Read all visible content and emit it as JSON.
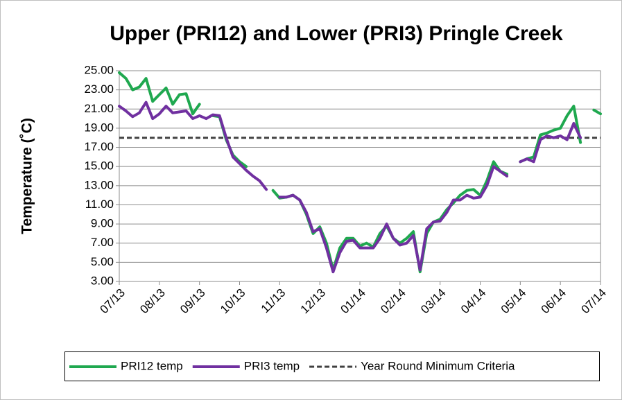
{
  "chart_data": {
    "type": "line",
    "title": "Upper (PRI12) and Lower (PRI3) Pringle Creek",
    "y_label": "Temperature (˚C)",
    "categories": [
      "07/13",
      null,
      null,
      null,
      null,
      null,
      "08/13",
      null,
      null,
      null,
      null,
      null,
      "09/13",
      null,
      null,
      null,
      null,
      null,
      "10/13",
      null,
      null,
      null,
      null,
      null,
      "11/13",
      null,
      null,
      null,
      null,
      null,
      "12/13",
      null,
      null,
      null,
      null,
      null,
      "01/14",
      null,
      null,
      null,
      null,
      null,
      "02/14",
      null,
      null,
      null,
      null,
      null,
      "03/14",
      null,
      null,
      null,
      null,
      null,
      "04/14",
      null,
      null,
      null,
      null,
      null,
      "05/14",
      null,
      null,
      null,
      null,
      null,
      "06/14",
      null,
      null,
      null,
      null,
      null,
      "07/14"
    ],
    "series": [
      {
        "name": "PRI12 temp",
        "color": "#1fa84f",
        "values": [
          24.8,
          24.2,
          23.0,
          23.3,
          24.2,
          21.8,
          22.5,
          23.2,
          21.5,
          22.5,
          22.6,
          20.5,
          21.5,
          null,
          20.3,
          20.2,
          17.8,
          16.2,
          15.5,
          15.0,
          null,
          null,
          null,
          12.5,
          11.7,
          11.8,
          12.0,
          11.5,
          10.0,
          8.0,
          8.7,
          7.0,
          4.2,
          6.5,
          7.5,
          7.5,
          6.7,
          7.0,
          6.6,
          8.0,
          8.8,
          7.5,
          7.0,
          7.5,
          8.2,
          4.0,
          8.0,
          9.2,
          9.5,
          10.5,
          11.2,
          12.0,
          12.5,
          12.6,
          12.0,
          13.5,
          15.5,
          14.5,
          14.2,
          null,
          15.5,
          15.8,
          16.0,
          18.3,
          18.5,
          18.8,
          19.0,
          20.3,
          21.3,
          17.5,
          null,
          20.9,
          20.5
        ]
      },
      {
        "name": "PRI3 temp",
        "color": "#7030a0",
        "values": [
          21.3,
          20.8,
          20.2,
          20.6,
          21.7,
          20.0,
          20.5,
          21.3,
          20.6,
          20.7,
          20.8,
          20.0,
          20.3,
          20.0,
          20.4,
          20.3,
          18.0,
          16.0,
          15.3,
          14.6,
          14.0,
          13.5,
          12.6,
          null,
          11.8,
          11.8,
          12.0,
          11.5,
          10.2,
          8.2,
          8.5,
          6.5,
          4.0,
          6.0,
          7.2,
          7.3,
          6.5,
          6.5,
          6.5,
          7.5,
          9.0,
          7.5,
          6.8,
          7.0,
          7.8,
          4.2,
          8.5,
          9.2,
          9.3,
          10.2,
          11.5,
          11.5,
          12.0,
          11.7,
          11.8,
          13.0,
          15.0,
          14.5,
          14.0,
          null,
          15.5,
          15.8,
          15.5,
          17.8,
          18.2,
          18.0,
          18.2,
          17.8,
          19.5,
          18.0,
          null,
          null,
          null
        ]
      }
    ],
    "reference_lines": [
      {
        "name": "Year Round Minimum Criteria",
        "value": 18,
        "color": "#404040"
      }
    ],
    "ylim": [
      3,
      25
    ],
    "yticks": [
      {
        "value": 3,
        "label": "3.00"
      },
      {
        "value": 5,
        "label": "5.00"
      },
      {
        "value": 7,
        "label": "7.00"
      },
      {
        "value": 9,
        "label": "9.00"
      },
      {
        "value": 11,
        "label": "11.00"
      },
      {
        "value": 13,
        "label": "13.00"
      },
      {
        "value": 15,
        "label": "15.00"
      },
      {
        "value": 17,
        "label": "17.00"
      },
      {
        "value": 19,
        "label": "19.00"
      },
      {
        "value": 21,
        "label": "21.00"
      },
      {
        "value": 23,
        "label": "23.00"
      },
      {
        "value": 25,
        "label": "25.00"
      }
    ],
    "grid": true,
    "legend": "bottom"
  }
}
